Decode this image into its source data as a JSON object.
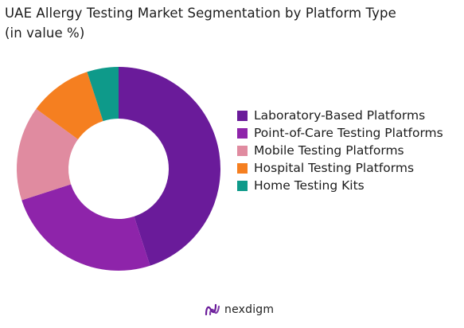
{
  "title_line1": "UAE Allergy Testing Market Segmentation by Platform Type",
  "title_line2": "(in value %)",
  "chart_data": {
    "type": "pie",
    "style": "donut",
    "title": "UAE Allergy Testing Market Segmentation by Platform Type (in value %)",
    "categories": [
      "Laboratory-Based Platforms",
      "Point-of-Care Testing Platforms",
      "Mobile Testing Platforms",
      "Hospital Testing Platforms",
      "Home Testing Kits"
    ],
    "values": [
      45,
      25,
      15,
      10,
      5
    ],
    "colors": [
      "#6a1b9a",
      "#8e24aa",
      "#e08ba0",
      "#f57f20",
      "#0e9a8a"
    ],
    "legend_position": "right"
  },
  "logo": {
    "text": "nexdigm",
    "color": "#6a1b9a"
  }
}
